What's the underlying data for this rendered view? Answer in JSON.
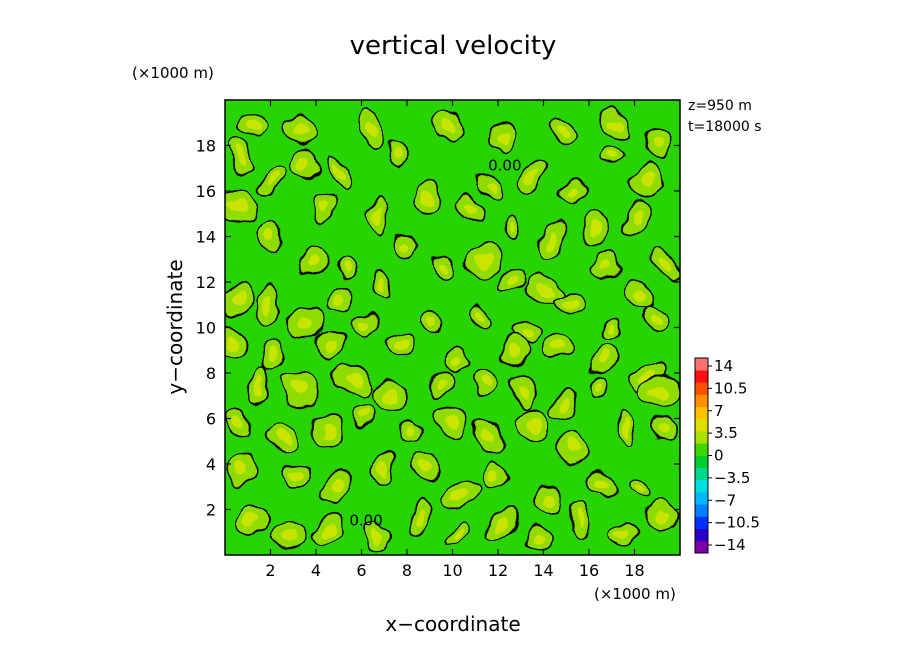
{
  "chart_data": {
    "type": "heatmap",
    "title": "vertical velocity",
    "xlabel": "x−coordinate",
    "ylabel": "y−coordinate",
    "x_unit": "(×1000 m)",
    "y_unit": "(×1000 m)",
    "xlim": [
      0,
      20
    ],
    "ylim": [
      0,
      20
    ],
    "x_ticks": [
      2,
      4,
      6,
      8,
      10,
      12,
      14,
      16,
      18
    ],
    "y_ticks": [
      2,
      4,
      6,
      8,
      10,
      12,
      14,
      16,
      18
    ],
    "x_tick_labels": [
      "2",
      "4",
      "6",
      "8",
      "10",
      "12",
      "14",
      "16",
      "18"
    ],
    "y_tick_labels": [
      "2",
      "4",
      "6",
      "8",
      "10",
      "12",
      "14",
      "16",
      "18"
    ],
    "info": [
      "z=950 m",
      "t=18000 s"
    ],
    "contour_level": 0,
    "contour_labels": [
      {
        "text": "0.00",
        "x": 12.3,
        "y": 16.9
      },
      {
        "text": "0.00",
        "x": 6.2,
        "y": 1.3
      }
    ],
    "colorbar": {
      "levels": [
        -14,
        -12.25,
        -10.5,
        -8.75,
        -7,
        -5.25,
        -3.5,
        -1.75,
        0,
        1.75,
        3.5,
        5.25,
        7,
        8.75,
        10.5,
        12.25,
        14
      ],
      "labels": [
        "14",
        "10.5",
        "7",
        "3.5",
        "0",
        "−3.5",
        "−7",
        "−10.5",
        "−14"
      ],
      "colors": [
        "#7a00a8",
        "#2a00c8",
        "#0030ff",
        "#0080ff",
        "#00b8ff",
        "#00e0e0",
        "#00d890",
        "#00cc30",
        "#40d800",
        "#a8e000",
        "#e0e000",
        "#ffc000",
        "#ff9000",
        "#ff5000",
        "#ff1010",
        "#ff7070"
      ]
    },
    "updraft_cores": [
      [
        1.2,
        18.9
      ],
      [
        3.3,
        18.7
      ],
      [
        6.5,
        18.7
      ],
      [
        9.8,
        18.8
      ],
      [
        12.2,
        18.4
      ],
      [
        14.8,
        18.6
      ],
      [
        17.2,
        18.9
      ],
      [
        19.1,
        18.2
      ],
      [
        0.7,
        17.5
      ],
      [
        2.1,
        16.5
      ],
      [
        3.5,
        17.3
      ],
      [
        5.0,
        16.8
      ],
      [
        7.6,
        17.6
      ],
      [
        8.9,
        15.6
      ],
      [
        11.6,
        16.2
      ],
      [
        13.5,
        16.6
      ],
      [
        15.4,
        16.0
      ],
      [
        16.9,
        17.5
      ],
      [
        18.6,
        16.5
      ],
      [
        0.5,
        15.3
      ],
      [
        4.4,
        15.2
      ],
      [
        6.8,
        14.9
      ],
      [
        10.9,
        15.2
      ],
      [
        12.6,
        14.4
      ],
      [
        14.4,
        13.8
      ],
      [
        16.3,
        14.4
      ],
      [
        18.1,
        14.8
      ],
      [
        19.4,
        12.8
      ],
      [
        2.0,
        14.0
      ],
      [
        3.9,
        12.9
      ],
      [
        5.3,
        12.6
      ],
      [
        8.0,
        13.6
      ],
      [
        9.6,
        12.8
      ],
      [
        11.4,
        12.9
      ],
      [
        12.6,
        12.1
      ],
      [
        14.0,
        11.6
      ],
      [
        16.7,
        12.7
      ],
      [
        18.3,
        11.4
      ],
      [
        0.5,
        11.2
      ],
      [
        1.9,
        11.0
      ],
      [
        3.5,
        10.2
      ],
      [
        5.0,
        11.2
      ],
      [
        6.9,
        12.0
      ],
      [
        9.1,
        10.3
      ],
      [
        11.1,
        10.4
      ],
      [
        13.3,
        10.0
      ],
      [
        15.1,
        11.0
      ],
      [
        17.0,
        10.0
      ],
      [
        19.0,
        10.3
      ],
      [
        0.4,
        9.4
      ],
      [
        2.1,
        8.7
      ],
      [
        4.6,
        9.4
      ],
      [
        6.1,
        10.2
      ],
      [
        7.8,
        9.2
      ],
      [
        10.1,
        8.6
      ],
      [
        12.7,
        9.0
      ],
      [
        14.6,
        9.1
      ],
      [
        16.6,
        8.6
      ],
      [
        18.6,
        7.9
      ],
      [
        1.4,
        7.4
      ],
      [
        3.3,
        7.3
      ],
      [
        5.7,
        7.7
      ],
      [
        7.3,
        7.0
      ],
      [
        9.4,
        7.5
      ],
      [
        11.5,
        7.6
      ],
      [
        13.2,
        7.2
      ],
      [
        14.9,
        6.6
      ],
      [
        16.4,
        7.4
      ],
      [
        19.1,
        7.2
      ],
      [
        0.6,
        5.7
      ],
      [
        2.5,
        5.2
      ],
      [
        4.5,
        5.5
      ],
      [
        6.1,
        6.1
      ],
      [
        8.2,
        5.6
      ],
      [
        10.0,
        5.8
      ],
      [
        11.6,
        5.2
      ],
      [
        13.6,
        5.7
      ],
      [
        15.3,
        4.8
      ],
      [
        17.6,
        5.6
      ],
      [
        19.3,
        5.5
      ],
      [
        0.8,
        3.7
      ],
      [
        3.1,
        3.5
      ],
      [
        5.0,
        3.0
      ],
      [
        7.0,
        3.9
      ],
      [
        8.8,
        3.9
      ],
      [
        10.4,
        2.6
      ],
      [
        11.9,
        3.4
      ],
      [
        14.2,
        2.5
      ],
      [
        16.5,
        3.1
      ],
      [
        18.3,
        2.9
      ],
      [
        1.2,
        1.5
      ],
      [
        2.8,
        0.9
      ],
      [
        4.5,
        1.2
      ],
      [
        6.7,
        0.8
      ],
      [
        8.5,
        1.5
      ],
      [
        10.2,
        1.0
      ],
      [
        12.1,
        1.4
      ],
      [
        13.8,
        0.7
      ],
      [
        15.6,
        1.6
      ],
      [
        17.5,
        0.9
      ],
      [
        19.3,
        1.7
      ]
    ]
  }
}
